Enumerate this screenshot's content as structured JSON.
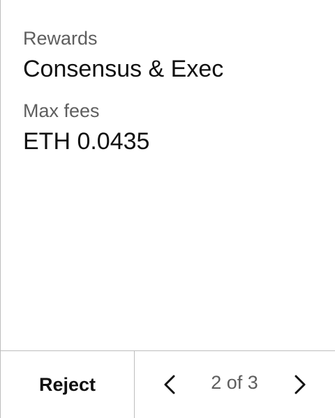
{
  "details": {
    "rewards_label": "Rewards",
    "rewards_value": "Consensus & Exec",
    "max_fees_label": "Max fees",
    "max_fees_value": "ETH 0.0435"
  },
  "footer": {
    "reject_label": "Reject",
    "page_indicator": "2 of 3",
    "prev_icon": "chevron-left-icon",
    "next_icon": "chevron-right-icon"
  },
  "colors": {
    "background": "#ffffff",
    "text_primary": "#111111",
    "text_secondary": "#5e5e5e",
    "divider": "#bdbdbd"
  }
}
